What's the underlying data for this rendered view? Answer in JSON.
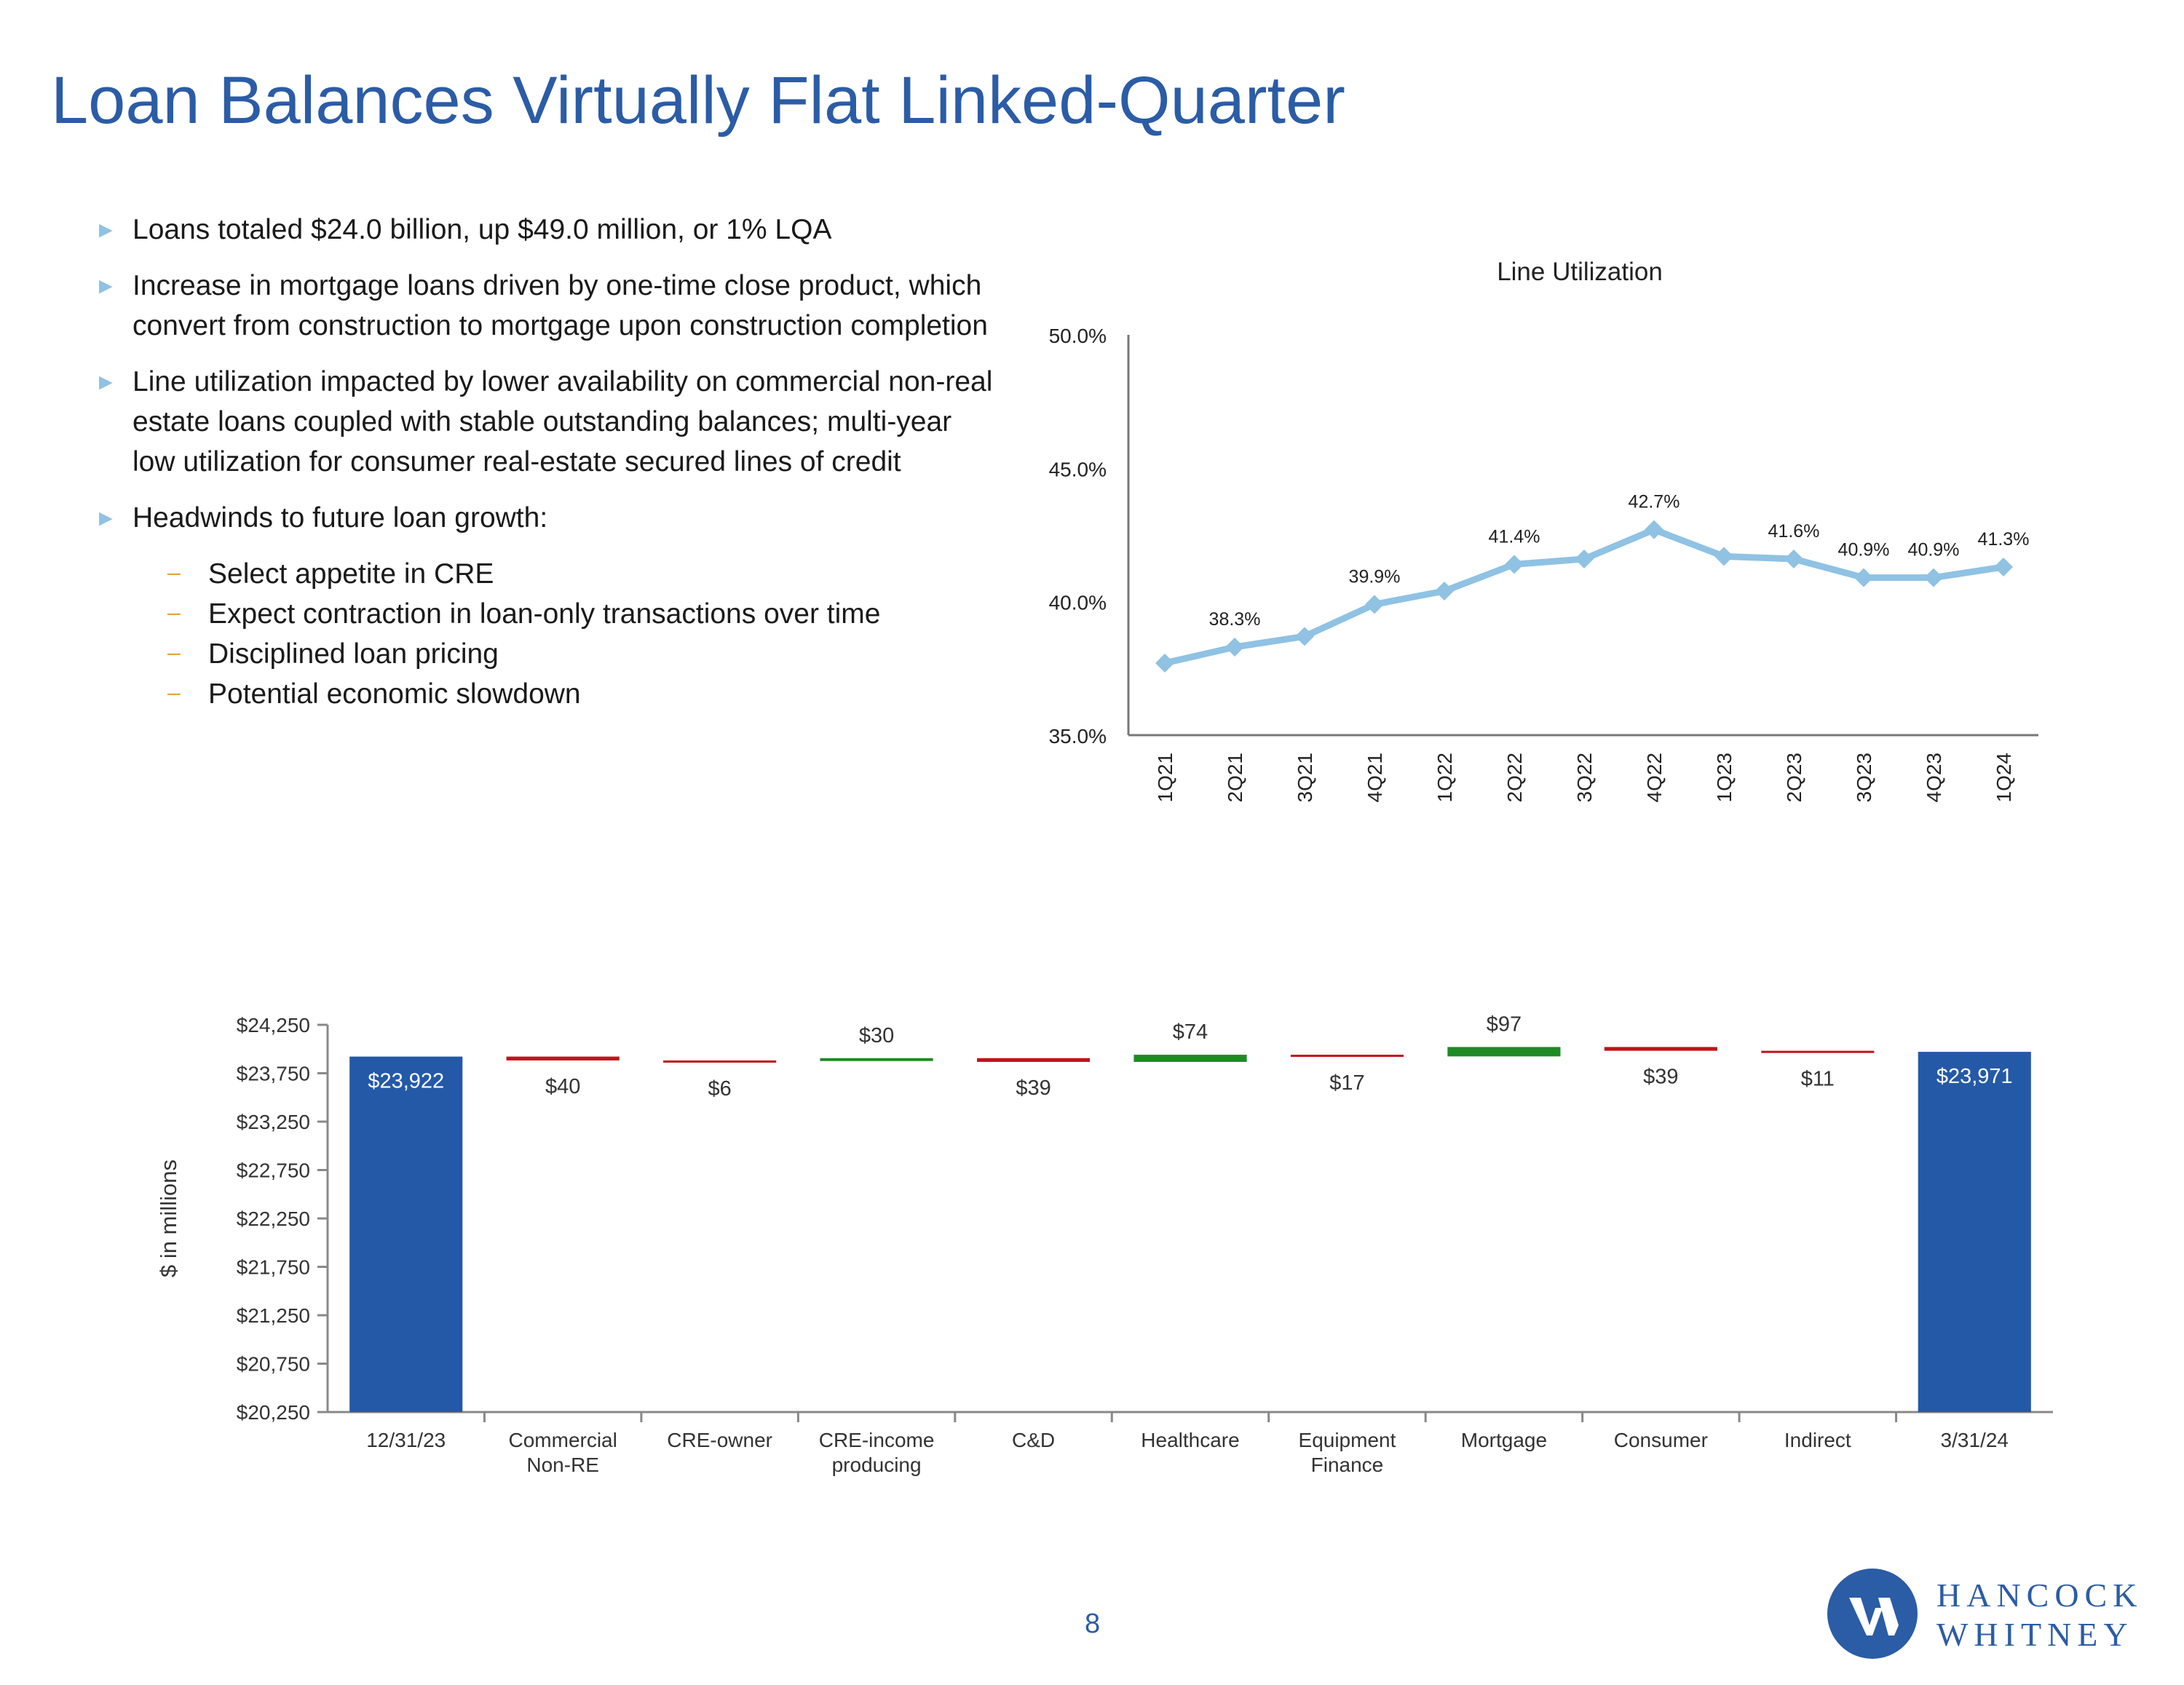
{
  "page": {
    "title": "Loan Balances Virtually Flat Linked-Quarter",
    "page_number": "8"
  },
  "bullets": [
    {
      "text": "Loans totaled $24.0 billion, up $49.0 million, or 1% LQA"
    },
    {
      "text": "Increase in mortgage loans driven by one-time close product, which convert from construction to mortgage upon construction completion"
    },
    {
      "text": "Line utilization impacted by lower availability on commercial non-real estate loans coupled with stable outstanding balances; multi-year low utilization for consumer real-estate secured lines of credit"
    },
    {
      "text": "Headwinds to future loan growth:"
    }
  ],
  "sub_bullets": [
    {
      "text": "Select appetite in CRE"
    },
    {
      "text": "Expect contraction in loan-only transactions over time"
    },
    {
      "text": "Disciplined loan pricing"
    },
    {
      "text": "Potential economic slowdown"
    }
  ],
  "icons": {
    "bullet": "triangle-bullet-icon",
    "sub_bullet": "dash-bullet-icon"
  },
  "glyphs": {
    "arrow": "►",
    "dash": "–"
  },
  "colors": {
    "title": "#2b5ca6",
    "line": "#8fc2e3",
    "bar_total": "#2459a8",
    "increase": "#1f8a25",
    "decrease": "#c0141a",
    "bullet_arrow": "#8fc2e3",
    "sub_dash": "#e5a33a"
  },
  "chart_data": [
    {
      "type": "line",
      "title": "Line Utilization",
      "x": [
        "1Q21",
        "2Q21",
        "3Q21",
        "4Q21",
        "1Q22",
        "2Q22",
        "3Q22",
        "4Q22",
        "1Q23",
        "2Q23",
        "3Q23",
        "4Q23",
        "1Q24"
      ],
      "values": [
        37.7,
        38.3,
        38.7,
        39.9,
        40.4,
        41.4,
        41.6,
        42.7,
        41.7,
        41.6,
        40.9,
        40.9,
        41.3
      ],
      "data_labels": [
        "",
        "38.3%",
        "",
        "39.9%",
        "",
        "41.4%",
        "",
        "42.7%",
        "",
        "41.6%",
        "40.9%",
        "40.9%",
        "41.3%"
      ],
      "ylim": [
        35,
        50
      ],
      "y_ticks": [
        "35.0%",
        "40.0%",
        "45.0%",
        "50.0%"
      ],
      "y_tick_values": [
        35,
        40,
        45,
        50
      ],
      "xlabel": "",
      "ylabel": "",
      "grid": false,
      "legend": "none"
    },
    {
      "type": "bar",
      "subtype": "waterfall",
      "ylabel": "$ in millions",
      "ylim": [
        20250,
        24250
      ],
      "y_ticks": [
        "$20,250",
        "$20,750",
        "$21,250",
        "$21,750",
        "$22,250",
        "$22,750",
        "$23,250",
        "$23,750",
        "$24,250"
      ],
      "y_tick_values": [
        20250,
        20750,
        21250,
        21750,
        22250,
        22750,
        23250,
        23750,
        24250
      ],
      "grid": false,
      "legend": "none",
      "categories": [
        {
          "lines": [
            "12/31/23"
          ],
          "kind": "total",
          "value": 23922,
          "label": "$23,922"
        },
        {
          "lines": [
            "Commercial",
            "Non-RE"
          ],
          "kind": "decrease",
          "value": 40,
          "label": "$40"
        },
        {
          "lines": [
            "CRE-owner"
          ],
          "kind": "decrease",
          "value": 6,
          "label": "$6"
        },
        {
          "lines": [
            "CRE-income",
            "producing"
          ],
          "kind": "increase",
          "value": 30,
          "label": "$30"
        },
        {
          "lines": [
            "C&D"
          ],
          "kind": "decrease",
          "value": 39,
          "label": "$39"
        },
        {
          "lines": [
            "Healthcare"
          ],
          "kind": "increase",
          "value": 74,
          "label": "$74"
        },
        {
          "lines": [
            "Equipment",
            "Finance"
          ],
          "kind": "decrease",
          "value": 17,
          "label": "$17"
        },
        {
          "lines": [
            "Mortgage"
          ],
          "kind": "increase",
          "value": 97,
          "label": "$97"
        },
        {
          "lines": [
            "Consumer"
          ],
          "kind": "decrease",
          "value": 39,
          "label": "$39"
        },
        {
          "lines": [
            "Indirect"
          ],
          "kind": "decrease",
          "value": 11,
          "label": "$11"
        },
        {
          "lines": [
            "3/31/24"
          ],
          "kind": "total",
          "value": 23971,
          "label": "$23,971"
        }
      ]
    }
  ],
  "logo": {
    "line1": "HANCOCK",
    "line2": "WHITNEY"
  }
}
